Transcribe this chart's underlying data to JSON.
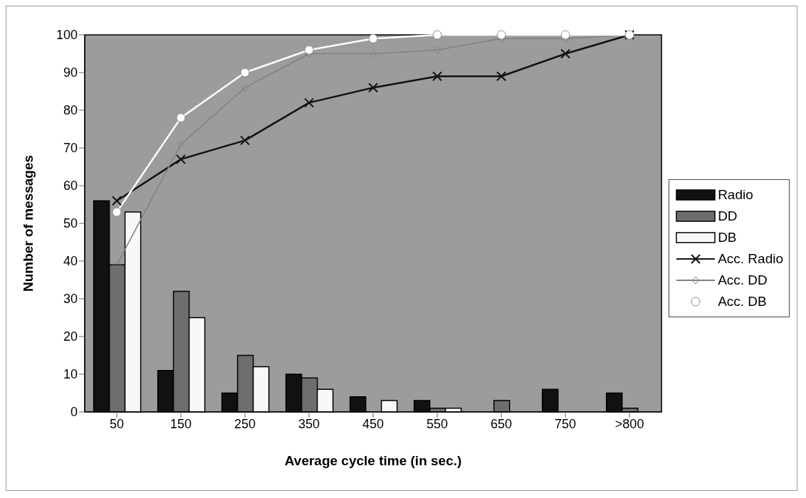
{
  "chart_data": {
    "type": "bar",
    "xlabel": "Average cycle time (in sec.)",
    "ylabel": "Number of messages",
    "categories": [
      "50",
      "150",
      "250",
      "350",
      "450",
      "550",
      "650",
      "750",
      ">800"
    ],
    "series": [
      {
        "name": "Radio",
        "type": "bar",
        "color": "#111111",
        "values": [
          56,
          11,
          5,
          10,
          4,
          3,
          0,
          6,
          5
        ]
      },
      {
        "name": "DD",
        "type": "bar",
        "color": "#6e6e6e",
        "values": [
          39,
          32,
          15,
          9,
          0,
          1,
          3,
          0,
          1
        ]
      },
      {
        "name": "DB",
        "type": "bar",
        "color": "#f8f8f8",
        "values": [
          53,
          25,
          12,
          6,
          3,
          1,
          0,
          0,
          0
        ]
      },
      {
        "name": "Acc. Radio",
        "type": "line",
        "color": "#111111",
        "marker": "cross",
        "values": [
          56,
          67,
          72,
          82,
          86,
          89,
          89,
          95,
          100
        ]
      },
      {
        "name": "Acc. DD",
        "type": "line",
        "color": "#808080",
        "marker": "diamond",
        "values": [
          39,
          71,
          86,
          95,
          95,
          96,
          99,
          99,
          100
        ]
      },
      {
        "name": "Acc. DB",
        "type": "line",
        "color": "#ffffff",
        "marker": "circle",
        "values": [
          53,
          78,
          90,
          96,
          99,
          100,
          100,
          100,
          100
        ]
      }
    ],
    "ylim": [
      0,
      100
    ],
    "yticks": [
      0,
      10,
      20,
      30,
      40,
      50,
      60,
      70,
      80,
      90,
      100
    ],
    "grid": false,
    "legend": "right"
  }
}
